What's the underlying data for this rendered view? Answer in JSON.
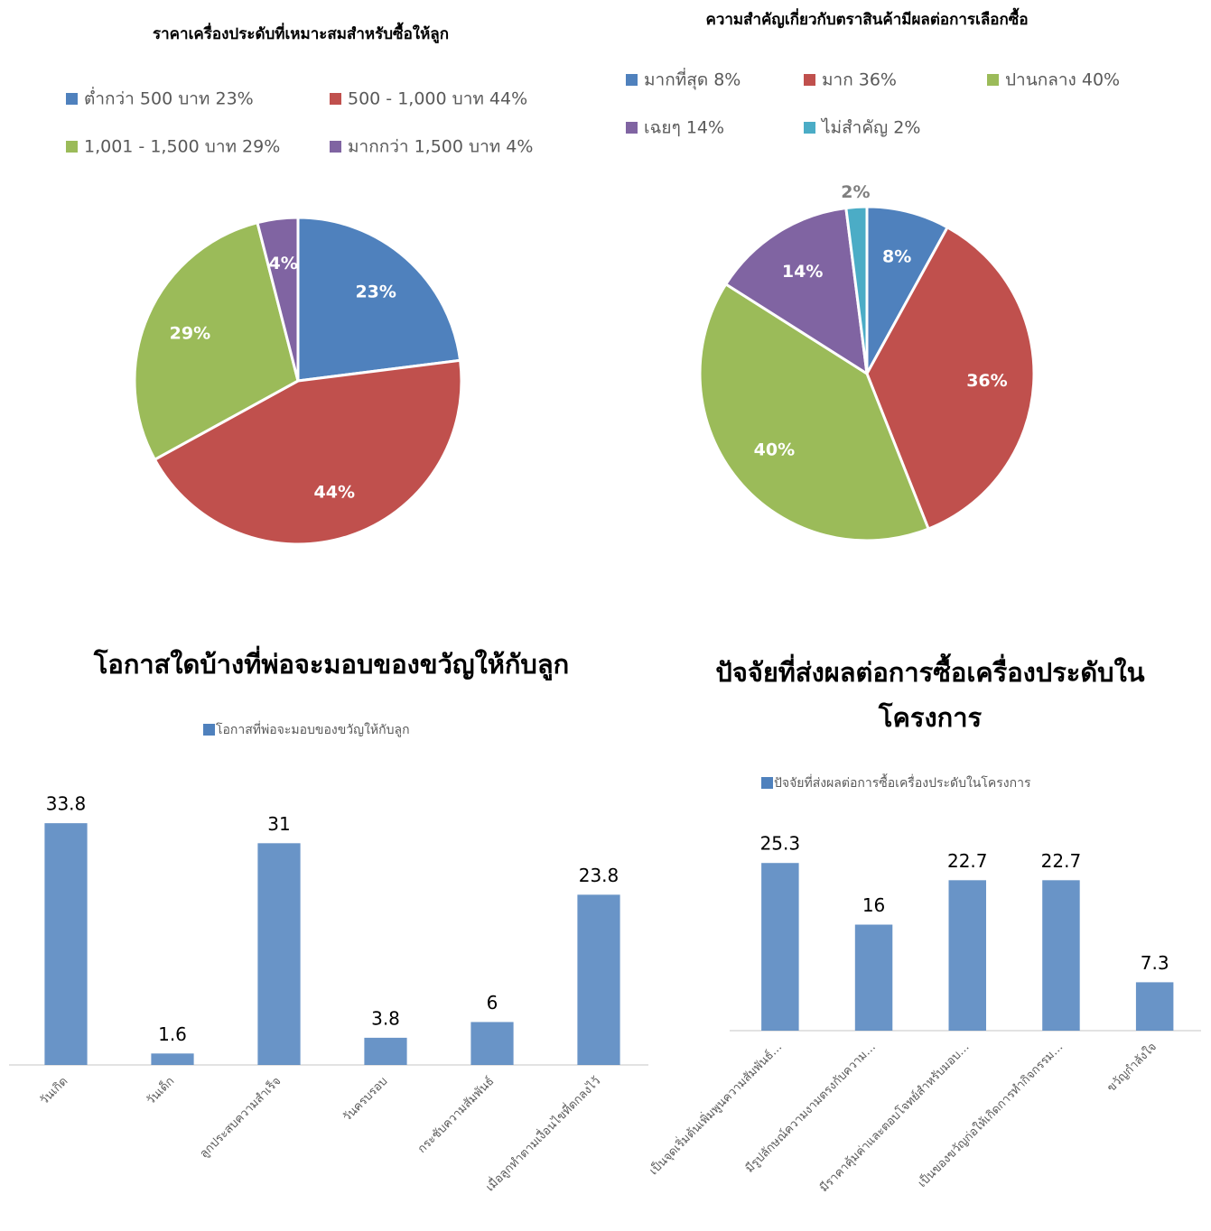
{
  "chart_data": [
    {
      "type": "pie",
      "title": "ราคาเครื่องประดับที่เหมาะสมสำหรับซื้อให้ลูก",
      "categories": [
        "ต่ำกว่า 500 บาท  23%",
        "500 - 1,000 บาท 44%",
        "1,001 -  1,500 บาท 29%",
        "มากกว่า 1,500 บาท 4%"
      ],
      "values": [
        23,
        44,
        29,
        4
      ],
      "value_labels": [
        "23%",
        "44%",
        "29%",
        "4%"
      ],
      "colors": [
        "#4f81bd",
        "#c0504d",
        "#9bbb59",
        "#8064a2"
      ]
    },
    {
      "type": "pie",
      "title": "ความสำคัญเกี่ยวกับตราสินค้ามีผลต่อการเลือกซื้อ",
      "categories": [
        "มากที่สุด 8%",
        "มาก 36%",
        "ปานกลาง 40%",
        "เฉยๆ 14%",
        "ไม่สำคัญ 2%"
      ],
      "values": [
        8,
        36,
        40,
        14,
        2
      ],
      "value_labels": [
        "8%",
        "36%",
        "40%",
        "14%",
        "2%"
      ],
      "colors": [
        "#4f81bd",
        "#c0504d",
        "#9bbb59",
        "#8064a2",
        "#4bacc6"
      ]
    },
    {
      "type": "bar",
      "title": "โอกาสใดบ้างที่พ่อจะมอบของขวัญให้กับลูก",
      "categories": [
        "วันเกิด",
        "วันเด็ก",
        "ลูกประสบความสำเร็จ",
        "วันครบรอบ",
        "กระชับความสัมพันธ์",
        "เมื่อลูกทำตามเงื่อนไขที่ตกลงไว้"
      ],
      "series": [
        {
          "name": "โอกาสที่พ่อจะมอบของขวัญให้กับลูก",
          "color": "#4f81bd",
          "values": [
            33.8,
            1.6,
            31,
            3.8,
            6,
            23.8
          ]
        }
      ],
      "ylim": [
        0,
        40
      ]
    },
    {
      "type": "bar",
      "title": "ปัจจัยที่ส่งผลต่อการซื้อเครื่องประดับในโครงการ",
      "categories": [
        "เป็นจุดเริ่มต้นเพิ่มพูนความสัมพันธ์…",
        "มีรูปลักษณ์ความงามตรงกับความ…",
        "มีราคาคุ้มค่าและตอบโจทย์สำหรับมอบ…",
        "เป็นของขวัญก่อให้เกิดการทำกิจกรรม…",
        "ขวัญกำลังใจ"
      ],
      "series": [
        {
          "name": "ปัจจัยที่ส่งผลต่อการซื้อเครื่องประดับในโครงการ",
          "color": "#4f81bd",
          "values": [
            25.3,
            16,
            22.7,
            22.7,
            7.3
          ]
        }
      ],
      "ylim": [
        0,
        35
      ]
    }
  ]
}
